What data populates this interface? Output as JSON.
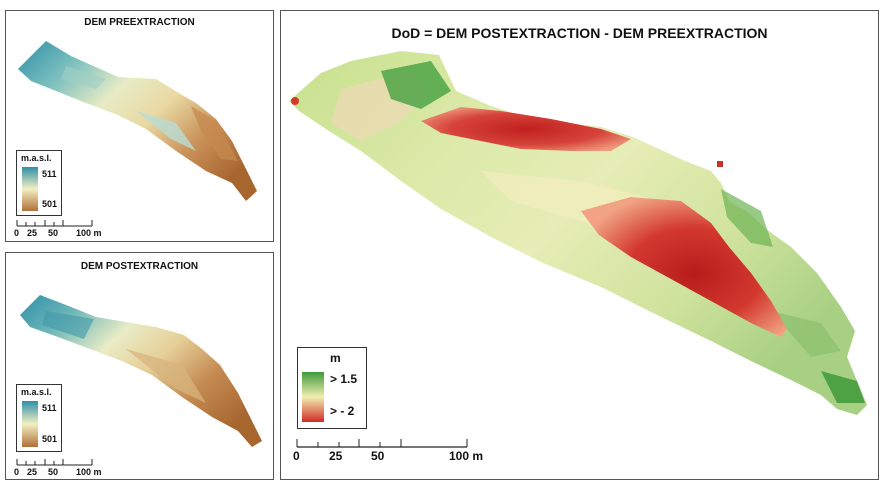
{
  "panels": {
    "pre": {
      "title": "DEM PREEXTRACTION",
      "legend": {
        "title": "m.a.s.l.",
        "high": "511",
        "low": "501",
        "color_high": "#2e8fa8",
        "color_mid": "#f3efc2",
        "color_low": "#b0703a"
      },
      "scale": {
        "labels": [
          "0",
          "25",
          "50",
          "100 m"
        ]
      }
    },
    "post": {
      "title": "DEM POSTEXTRACTION",
      "legend": {
        "title": "m.a.s.l.",
        "high": "511",
        "low": "501",
        "color_high": "#2e8fa8",
        "color_mid": "#f3efc2",
        "color_low": "#b0703a"
      },
      "scale": {
        "labels": [
          "0",
          "25",
          "50",
          "100 m"
        ]
      }
    },
    "dod": {
      "title": "DoD = DEM POSTEXTRACTION - DEM PREEXTRACTION",
      "legend": {
        "title": "m",
        "high": "> 1.5",
        "low": "> - 2",
        "color_high": "#3f9a3a",
        "color_mid": "#f2eeb0",
        "color_low": "#d12b26"
      },
      "scale": {
        "labels": [
          "0",
          "25",
          "50",
          "100 m"
        ]
      }
    }
  }
}
